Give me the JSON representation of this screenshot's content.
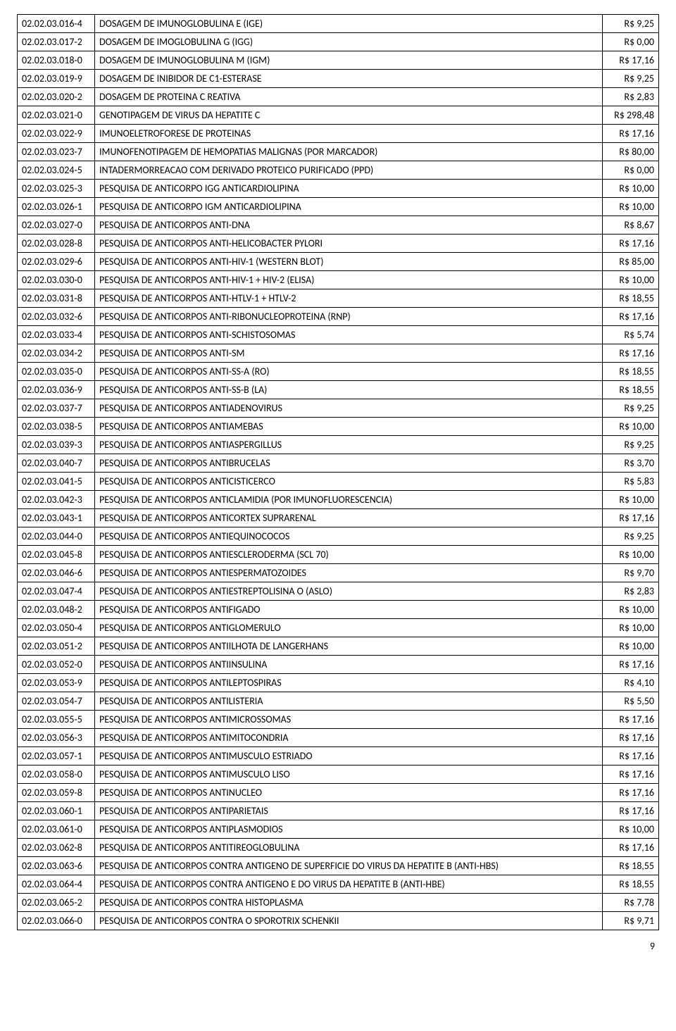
{
  "page_number": "9",
  "rows": [
    {
      "code": "02.02.03.016-4",
      "desc": "DOSAGEM DE IMUNOGLOBULINA E (IGE)",
      "price": "R$ 9,25"
    },
    {
      "code": "02.02.03.017-2",
      "desc": "DOSAGEM DE IMOGLOBULINA G (IGG)",
      "price": "R$ 0,00"
    },
    {
      "code": "02.02.03.018-0",
      "desc": "DOSAGEM DE IMUNOGLOBULINA M (IGM)",
      "price": "R$ 17,16"
    },
    {
      "code": "02.02.03.019-9",
      "desc": "DOSAGEM DE INIBIDOR DE C1-ESTERASE",
      "price": "R$ 9,25"
    },
    {
      "code": "02.02.03.020-2",
      "desc": "DOSAGEM DE PROTEINA C REATIVA",
      "price": "R$ 2,83"
    },
    {
      "code": "02.02.03.021-0",
      "desc": "GENOTIPAGEM DE VIRUS DA HEPATITE C",
      "price": "R$ 298,48"
    },
    {
      "code": "02.02.03.022-9",
      "desc": "IMUNOELETROFORESE DE PROTEINAS",
      "price": "R$ 17,16"
    },
    {
      "code": "02.02.03.023-7",
      "desc": "IMUNOFENOTIPAGEM DE HEMOPATIAS MALIGNAS (POR MARCADOR)",
      "price": "R$ 80,00"
    },
    {
      "code": "02.02.03.024-5",
      "desc": "INTADERMORREACAO COM DERIVADO PROTEICO PURIFICADO (PPD)",
      "price": "R$ 0,00"
    },
    {
      "code": "02.02.03.025-3",
      "desc": "PESQUISA DE ANTICORPO IGG ANTICARDIOLIPINA",
      "price": "R$ 10,00"
    },
    {
      "code": "02.02.03.026-1",
      "desc": "PESQUISA DE ANTICORPO IGM ANTICARDIOLIPINA",
      "price": "R$ 10,00"
    },
    {
      "code": "02.02.03.027-0",
      "desc": "PESQUISA DE ANTICORPOS ANTI-DNA",
      "price": "R$ 8,67"
    },
    {
      "code": "02.02.03.028-8",
      "desc": "PESQUISA DE ANTICORPOS ANTI-HELICOBACTER PYLORI",
      "price": "R$ 17,16"
    },
    {
      "code": "02.02.03.029-6",
      "desc": "PESQUISA DE ANTICORPOS ANTI-HIV-1 (WESTERN BLOT)",
      "price": "R$ 85,00"
    },
    {
      "code": "02.02.03.030-0",
      "desc": "PESQUISA DE ANTICORPOS ANTI-HIV-1 + HIV-2 (ELISA)",
      "price": "R$ 10,00"
    },
    {
      "code": "02.02.03.031-8",
      "desc": "PESQUISA DE ANTICORPOS ANTI-HTLV-1 + HTLV-2",
      "price": "R$ 18,55"
    },
    {
      "code": "02.02.03.032-6",
      "desc": "PESQUISA DE ANTICORPOS ANTI-RIBONUCLEOPROTEINA (RNP)",
      "price": "R$ 17,16"
    },
    {
      "code": "02.02.03.033-4",
      "desc": "PESQUISA DE ANTICORPOS ANTI-SCHISTOSOMAS",
      "price": "R$ 5,74"
    },
    {
      "code": "02.02.03.034-2",
      "desc": "PESQUISA DE ANTICORPOS ANTI-SM",
      "price": "R$ 17,16"
    },
    {
      "code": "02.02.03.035-0",
      "desc": "PESQUISA DE ANTICORPOS ANTI-SS-A (RO)",
      "price": "R$ 18,55"
    },
    {
      "code": "02.02.03.036-9",
      "desc": "PESQUISA DE ANTICORPOS ANTI-SS-B (LA)",
      "price": "R$ 18,55"
    },
    {
      "code": "02.02.03.037-7",
      "desc": "PESQUISA DE ANTICORPOS ANTIADENOVIRUS",
      "price": "R$ 9,25"
    },
    {
      "code": "02.02.03.038-5",
      "desc": "PESQUISA DE ANTICORPOS ANTIAMEBAS",
      "price": "R$ 10,00"
    },
    {
      "code": "02.02.03.039-3",
      "desc": "PESQUISA DE ANTICORPOS ANTIASPERGILLUS",
      "price": "R$ 9,25"
    },
    {
      "code": "02.02.03.040-7",
      "desc": "PESQUISA DE ANTICORPOS ANTIBRUCELAS",
      "price": "R$ 3,70"
    },
    {
      "code": "02.02.03.041-5",
      "desc": "PESQUISA DE ANTICORPOS ANTICISTICERCO",
      "price": "R$ 5,83"
    },
    {
      "code": "02.02.03.042-3",
      "desc": "PESQUISA DE ANTICORPOS ANTICLAMIDIA (POR IMUNOFLUORESCENCIA)",
      "price": "R$ 10,00"
    },
    {
      "code": "02.02.03.043-1",
      "desc": "PESQUISA DE ANTICORPOS ANTICORTEX SUPRARENAL",
      "price": "R$ 17,16"
    },
    {
      "code": "02.02.03.044-0",
      "desc": "PESQUISA DE ANTICORPOS ANTIEQUINOCOCOS",
      "price": "R$ 9,25"
    },
    {
      "code": "02.02.03.045-8",
      "desc": "PESQUISA DE ANTICORPOS ANTIESCLERODERMA (SCL 70)",
      "price": "R$ 10,00"
    },
    {
      "code": "02.02.03.046-6",
      "desc": "PESQUISA DE ANTICORPOS ANTIESPERMATOZOIDES",
      "price": "R$ 9,70"
    },
    {
      "code": "02.02.03.047-4",
      "desc": "PESQUISA DE ANTICORPOS ANTIESTREPTOLISINA O (ASLO)",
      "price": "R$ 2,83"
    },
    {
      "code": "02.02.03.048-2",
      "desc": "PESQUISA DE ANTICORPOS ANTIFIGADO",
      "price": "R$ 10,00"
    },
    {
      "code": "02.02.03.050-4",
      "desc": "PESQUISA DE ANTICORPOS ANTIGLOMERULO",
      "price": "R$ 10,00"
    },
    {
      "code": "02.02.03.051-2",
      "desc": "PESQUISA DE ANTICORPOS ANTIILHOTA DE LANGERHANS",
      "price": "R$ 10,00"
    },
    {
      "code": "02.02.03.052-0",
      "desc": "PESQUISA DE ANTICORPOS ANTIINSULINA",
      "price": "R$ 17,16"
    },
    {
      "code": "02.02.03.053-9",
      "desc": "PESQUISA DE ANTICORPOS ANTILEPTOSPIRAS",
      "price": "R$ 4,10"
    },
    {
      "code": "02.02.03.054-7",
      "desc": "PESQUISA DE ANTICORPOS ANTILISTERIA",
      "price": "R$ 5,50"
    },
    {
      "code": "02.02.03.055-5",
      "desc": "PESQUISA DE ANTICORPOS ANTIMICROSSOMAS",
      "price": "R$ 17,16"
    },
    {
      "code": "02.02.03.056-3",
      "desc": "PESQUISA DE ANTICORPOS ANTIMITOCONDRIA",
      "price": "R$ 17,16"
    },
    {
      "code": "02.02.03.057-1",
      "desc": "PESQUISA DE ANTICORPOS ANTIMUSCULO ESTRIADO",
      "price": "R$ 17,16"
    },
    {
      "code": "02.02.03.058-0",
      "desc": "PESQUISA DE ANTICORPOS ANTIMUSCULO LISO",
      "price": "R$ 17,16"
    },
    {
      "code": "02.02.03.059-8",
      "desc": "PESQUISA DE ANTICORPOS ANTINUCLEO",
      "price": "R$ 17,16"
    },
    {
      "code": "02.02.03.060-1",
      "desc": "PESQUISA DE ANTICORPOS ANTIPARIETAIS",
      "price": "R$ 17,16"
    },
    {
      "code": "02.02.03.061-0",
      "desc": "PESQUISA DE ANTICORPOS ANTIPLASMODIOS",
      "price": "R$ 10,00"
    },
    {
      "code": "02.02.03.062-8",
      "desc": "PESQUISA DE ANTICORPOS ANTITIREOGLOBULINA",
      "price": "R$ 17,16"
    },
    {
      "code": "02.02.03.063-6",
      "desc": "PESQUISA DE ANTICORPOS CONTRA ANTIGENO DE SUPERFICIE DO VIRUS DA HEPATITE B (ANTI-HBS)",
      "price": "R$ 18,55"
    },
    {
      "code": "02.02.03.064-4",
      "desc": "PESQUISA DE ANTICORPOS CONTRA ANTIGENO E DO VIRUS DA HEPATITE B (ANTI-HBE)",
      "price": "R$ 18,55"
    },
    {
      "code": "02.02.03.065-2",
      "desc": "PESQUISA DE ANTICORPOS CONTRA HISTOPLASMA",
      "price": "R$ 7,78"
    },
    {
      "code": "02.02.03.066-0",
      "desc": "PESQUISA DE ANTICORPOS CONTRA O SPOROTRIX SCHENKII",
      "price": "R$ 9,71"
    }
  ]
}
